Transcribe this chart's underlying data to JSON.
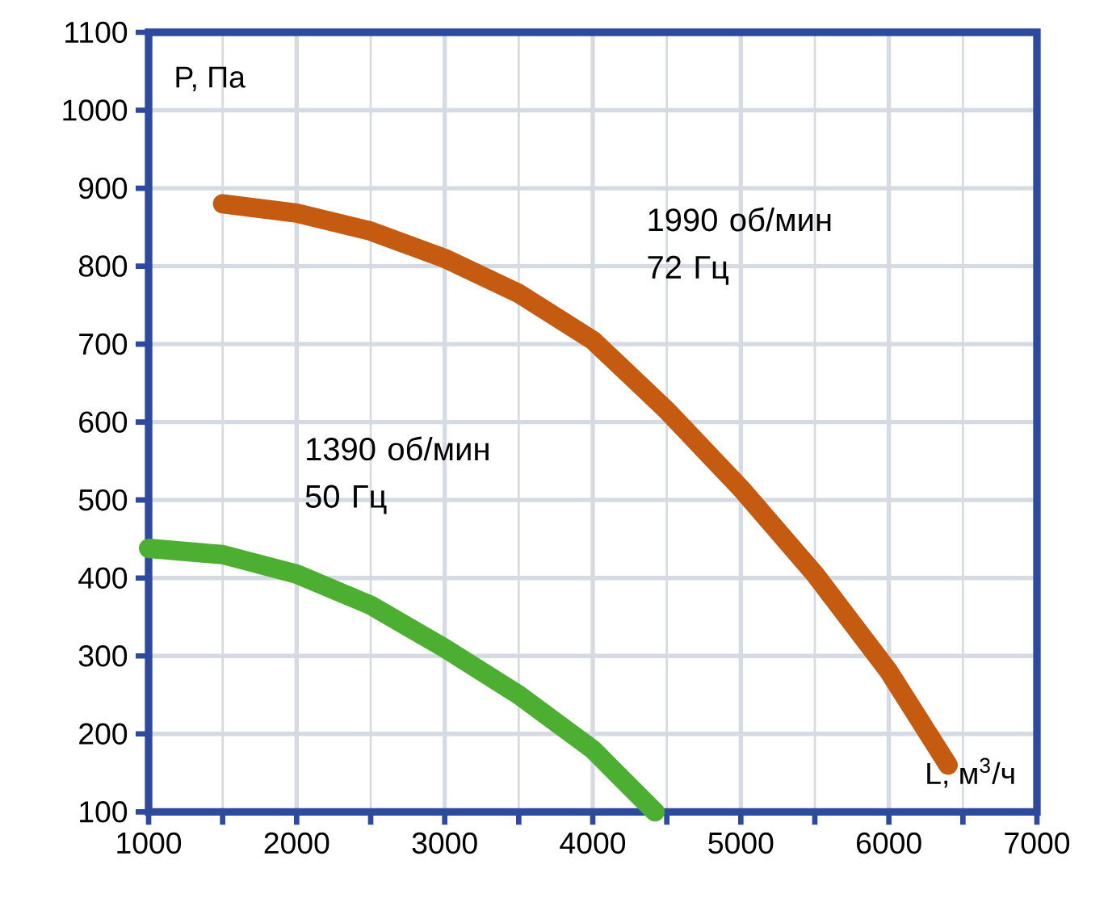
{
  "chart_data": {
    "type": "line",
    "xlabel": "L, м$^{3}$/ч",
    "ylabel": "P, Па",
    "xlim": [
      1000,
      7000
    ],
    "xticks": [
      1000,
      2000,
      3000,
      4000,
      5000,
      6000,
      7000
    ],
    "ylim": [
      100,
      1100
    ],
    "yticks": [
      100,
      200,
      300,
      400,
      500,
      600,
      700,
      800,
      900,
      1000,
      1100
    ],
    "grid": true,
    "marker": "none",
    "line_style": "solid",
    "series": [
      {
        "name": "1990 об/мин 72 Гц",
        "color": "#c55a11",
        "x": [
          1500,
          2000,
          2500,
          3000,
          3500,
          4000,
          4500,
          5000,
          5500,
          6000,
          6400
        ],
        "values": [
          880,
          868,
          845,
          810,
          765,
          705,
          615,
          515,
          405,
          280,
          160
        ]
      },
      {
        "name": "1390 об/мин 50 Гц",
        "color": "#4caf32",
        "x": [
          1000,
          1500,
          2000,
          2500,
          3000,
          3500,
          4000,
          4420
        ],
        "values": [
          438,
          430,
          405,
          365,
          310,
          250,
          180,
          100
        ]
      }
    ]
  }
}
